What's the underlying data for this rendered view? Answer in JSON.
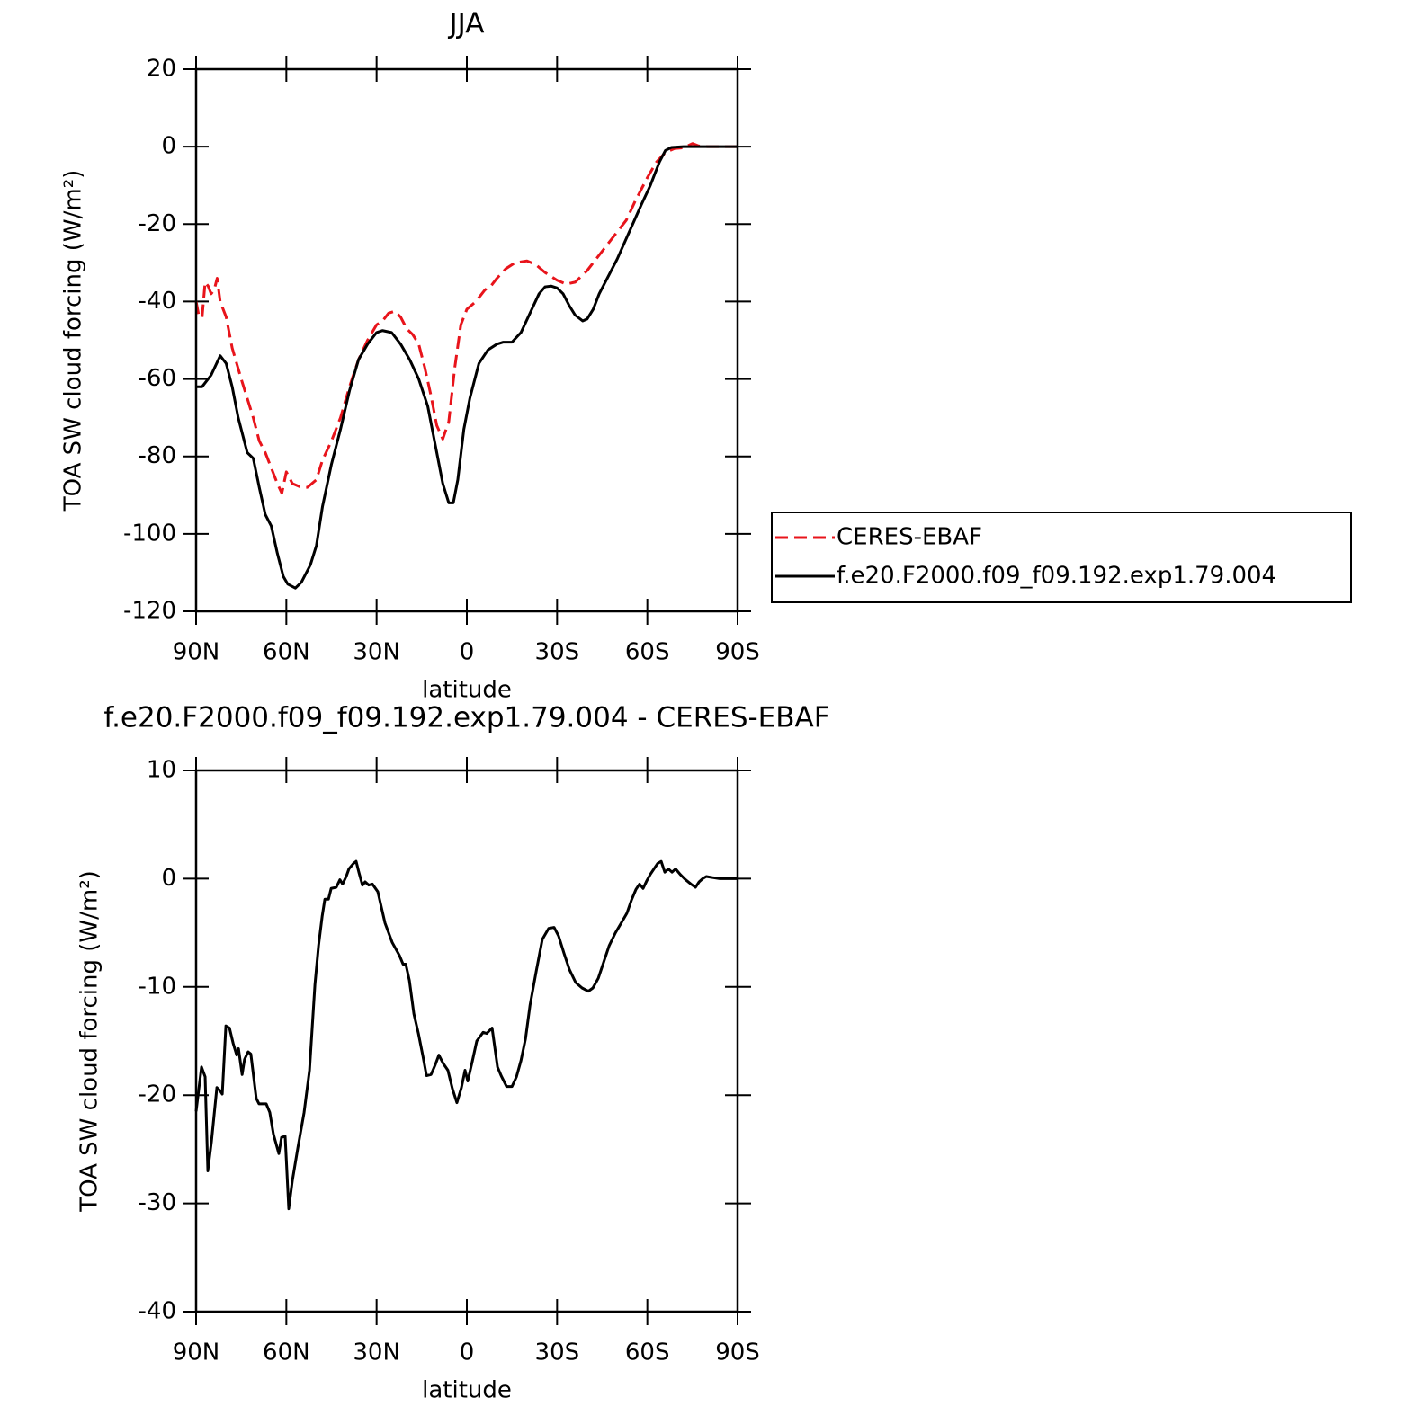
{
  "chart_data": [
    {
      "type": "line",
      "title": "JJA",
      "xlabel": "latitude",
      "ylabel": "TOA SW cloud forcing (W/m²)",
      "xlim": [
        90,
        -90
      ],
      "xticks": [
        {
          "value": 90,
          "label": "90N"
        },
        {
          "value": 60,
          "label": "60N"
        },
        {
          "value": 30,
          "label": "30N"
        },
        0,
        {
          "value": -30,
          "label": "30S"
        },
        {
          "value": -60,
          "label": "60S"
        },
        {
          "value": -90,
          "label": "90S"
        }
      ],
      "ylim": [
        -120,
        20
      ],
      "yticks": [
        -120,
        -100,
        -80,
        -60,
        -40,
        -20,
        0,
        20
      ],
      "legend": "right",
      "series": [
        {
          "name": "CERES-EBAF",
          "color": "#e8141b",
          "dashed": true,
          "x": [
            90,
            89,
            88,
            87,
            86,
            85,
            84,
            83,
            82,
            80,
            78,
            75,
            73,
            71,
            69,
            67,
            65,
            63,
            61.5,
            60,
            58,
            55,
            53,
            50,
            48,
            45,
            42,
            39,
            36,
            33,
            30,
            28,
            26,
            24,
            22,
            20,
            18,
            16,
            14,
            12,
            10,
            8,
            6,
            4,
            2,
            0,
            -3,
            -6,
            -8,
            -10,
            -13,
            -16,
            -20,
            -23,
            -26,
            -30,
            -33,
            -36,
            -40,
            -44,
            -48,
            -53,
            -56,
            -60,
            -63,
            -66,
            -69,
            -72,
            -75,
            -77,
            -80,
            -90
          ],
          "values": [
            -40,
            -44,
            -44,
            -35,
            -36,
            -38,
            -37,
            -34,
            -40,
            -44,
            -52,
            -60,
            -65,
            -70,
            -76,
            -79,
            -83,
            -87,
            -89.5,
            -84,
            -87,
            -88,
            -88,
            -86,
            -81,
            -76,
            -70,
            -62,
            -55,
            -50,
            -46,
            -45,
            -43,
            -42.5,
            -44,
            -47,
            -48.5,
            -51,
            -57,
            -64,
            -72,
            -75.5,
            -71,
            -57,
            -46,
            -42,
            -40,
            -37,
            -36,
            -34,
            -31.5,
            -30,
            -29.5,
            -30.5,
            -32.5,
            -34.5,
            -35.5,
            -35,
            -32,
            -28,
            -24,
            -19,
            -14,
            -8,
            -4,
            -1.5,
            -0.5,
            -0.3,
            0.8,
            0.2,
            0,
            0
          ]
        },
        {
          "name": "f.e20.F2000.f09_f09.192.exp1.79.004",
          "color": "#000000",
          "dashed": false,
          "x": [
            90,
            88,
            85,
            82,
            80,
            78,
            76,
            73,
            71,
            69,
            67,
            65,
            63,
            61,
            59.5,
            57,
            55,
            52,
            50,
            48,
            45,
            42,
            39,
            36,
            33,
            30,
            28,
            25,
            22,
            19,
            16,
            13,
            10,
            8,
            6,
            4.5,
            3,
            1,
            -1,
            -4,
            -7,
            -10,
            -12,
            -15,
            -18,
            -21,
            -24,
            -26,
            -28,
            -30,
            -32,
            -34,
            -36,
            -38.5,
            -40,
            -42,
            -44,
            -46,
            -50,
            -54,
            -58,
            -61,
            -64,
            -66,
            -68,
            -72,
            -80,
            -90
          ],
          "values": [
            -62,
            -62,
            -59,
            -54,
            -56,
            -62,
            -70,
            -79,
            -80.5,
            -88,
            -95,
            -98,
            -105,
            -111,
            -113,
            -114,
            -112.5,
            -108,
            -103,
            -93,
            -82,
            -73,
            -63,
            -55,
            -51,
            -48,
            -47.5,
            -48,
            -51,
            -55,
            -60,
            -67,
            -79,
            -87,
            -92,
            -92,
            -86,
            -73,
            -65,
            -56,
            -52.5,
            -51,
            -50.5,
            -50.5,
            -48,
            -43,
            -38,
            -36.2,
            -36,
            -36.5,
            -38,
            -41,
            -43.5,
            -45,
            -44.5,
            -42,
            -38,
            -35,
            -29,
            -22,
            -15,
            -10,
            -4,
            -1,
            -0.2,
            0,
            0,
            0
          ]
        }
      ]
    },
    {
      "type": "line",
      "title": "f.e20.F2000.f09_f09.192.exp1.79.004 - CERES-EBAF",
      "xlabel": "latitude",
      "ylabel": "TOA SW cloud forcing (W/m²)",
      "xlim": [
        90,
        -90
      ],
      "xticks": [
        {
          "value": 90,
          "label": "90N"
        },
        {
          "value": 60,
          "label": "60N"
        },
        {
          "value": 30,
          "label": "30N"
        },
        0,
        {
          "value": -30,
          "label": "30S"
        },
        {
          "value": -60,
          "label": "60S"
        },
        {
          "value": -90,
          "label": "90S"
        }
      ],
      "ylim": [
        -40,
        10
      ],
      "yticks": [
        -40,
        -30,
        -20,
        -10,
        0,
        10
      ],
      "series": [
        {
          "color": "#000000",
          "dashed": false,
          "x": [
            90,
            88.2,
            87,
            86.1,
            84.9,
            83.1,
            82,
            81.3,
            80.1,
            78.9,
            77.7,
            76.5,
            75.9,
            74.7,
            73.9,
            72.7,
            71.8,
            70,
            69.1,
            66.7,
            65.5,
            64.3,
            62.5,
            61.6,
            60.4,
            59.2,
            58,
            56.2,
            54.1,
            52.3,
            50.5,
            49.3,
            48.1,
            47.2,
            46,
            45.1,
            43.4,
            42.2,
            41.3,
            40.1,
            39.2,
            37.7,
            36.8,
            35.9,
            34.7,
            33.8,
            32.6,
            31.4,
            29.6,
            27.2,
            24.8,
            22.4,
            21.2,
            20.3,
            19.1,
            17.6,
            16.1,
            14.6,
            13.4,
            11.9,
            10.5,
            9.3,
            7.8,
            6.3,
            4.8,
            3.3,
            1.8,
            0.6,
            -0.3,
            -1.8,
            -3.3,
            -5.4,
            -6.6,
            -8.4,
            -10.2,
            -11.4,
            -13.2,
            -15,
            -16.5,
            -18,
            -19.5,
            -21,
            -23.1,
            -25.1,
            -27.2,
            -29,
            -30.5,
            -32.3,
            -34.1,
            -36.2,
            -38.3,
            -40.4,
            -41.9,
            -43.7,
            -45.5,
            -47.3,
            -49.4,
            -51.1,
            -53.2,
            -54.7,
            -56.2,
            -57.4,
            -58.6,
            -59.8,
            -61,
            -62.2,
            -63.4,
            -64.6,
            -65.8,
            -67,
            -68.2,
            -69.4,
            -70.9,
            -72.7,
            -74.5,
            -76,
            -77.2,
            -78.4,
            -79.6,
            -81.7,
            -84.1,
            -90
          ],
          "values": [
            -21.5,
            -17.4,
            -18.3,
            -27,
            -24.3,
            -19.3,
            -19.6,
            -19.9,
            -13.6,
            -13.8,
            -15.2,
            -16.3,
            -15.7,
            -18.1,
            -16.7,
            -16,
            -16.2,
            -20.3,
            -20.8,
            -20.8,
            -21.6,
            -23.6,
            -25.4,
            -23.9,
            -23.8,
            -30.5,
            -27.9,
            -24.9,
            -21.6,
            -17.7,
            -9.8,
            -6.2,
            -3.5,
            -1.9,
            -1.9,
            -0.9,
            -0.8,
            -0.1,
            -0.5,
            0.2,
            0.9,
            1.4,
            1.6,
            0.6,
            -0.6,
            -0.3,
            -0.6,
            -0.5,
            -1.2,
            -4.1,
            -5.9,
            -7.1,
            -7.9,
            -7.9,
            -9.4,
            -12.5,
            -14.3,
            -16.4,
            -18.2,
            -18.1,
            -17.2,
            -16.3,
            -17.1,
            -17.7,
            -19.4,
            -20.7,
            -19.3,
            -17.7,
            -18.7,
            -16.9,
            -15,
            -14.2,
            -14.3,
            -13.8,
            -17.4,
            -18.2,
            -19.2,
            -19.2,
            -18.3,
            -16.8,
            -14.8,
            -11.7,
            -8.5,
            -5.6,
            -4.6,
            -4.5,
            -5.3,
            -6.9,
            -8.4,
            -9.6,
            -10.1,
            -10.4,
            -10.1,
            -9.2,
            -7.7,
            -6.2,
            -5,
            -4.2,
            -3.2,
            -2,
            -1,
            -0.5,
            -0.9,
            -0.2,
            0.4,
            0.9,
            1.4,
            1.6,
            0.6,
            0.9,
            0.6,
            0.9,
            0.4,
            -0.1,
            -0.5,
            -0.8,
            -0.3,
            0,
            0.2,
            0.1,
            0,
            0
          ]
        }
      ]
    }
  ]
}
